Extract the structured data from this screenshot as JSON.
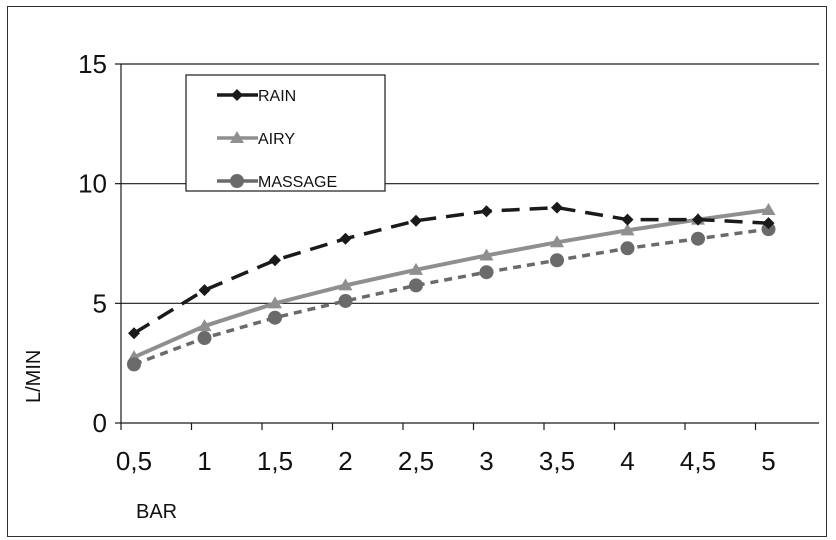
{
  "chart_data": {
    "type": "line",
    "title": "",
    "xlabel": "BAR",
    "ylabel": "L/MIN",
    "categories": [
      "0,5",
      "1",
      "1,5",
      "2",
      "2,5",
      "3",
      "3,5",
      "4",
      "4,5",
      "5"
    ],
    "ylim": [
      0,
      15
    ],
    "yticks": [
      "0",
      "5",
      "10",
      "15"
    ],
    "grid": "horizontal",
    "legend_position": "top-left",
    "series": [
      {
        "name": "RAIN",
        "values": [
          3.75,
          5.55,
          6.8,
          7.7,
          8.45,
          8.85,
          9.0,
          8.5,
          8.5,
          8.35
        ],
        "color": "#1a1a1a",
        "dash": "long-dash",
        "marker": "diamond"
      },
      {
        "name": "AIRY",
        "values": [
          2.75,
          4.05,
          5.0,
          5.75,
          6.4,
          7.0,
          7.55,
          8.05,
          8.5,
          8.9
        ],
        "color": "#8f8f8f",
        "dash": "solid",
        "marker": "triangle"
      },
      {
        "name": "MASSAGE",
        "values": [
          2.45,
          3.55,
          4.4,
          5.1,
          5.75,
          6.3,
          6.8,
          7.3,
          7.7,
          8.1
        ],
        "color": "#6a6a6a",
        "dash": "short-dash",
        "marker": "circle"
      }
    ]
  }
}
